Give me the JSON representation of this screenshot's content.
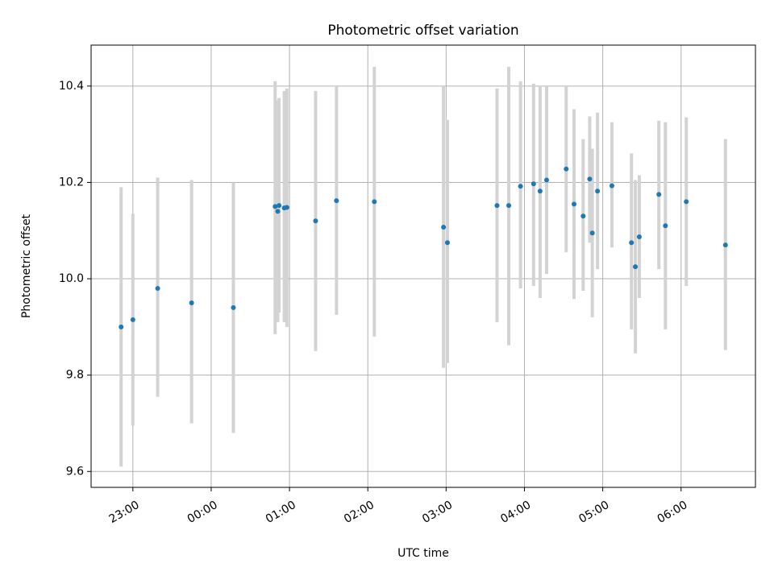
{
  "chart_data": {
    "type": "scatter",
    "title": "Photometric offset variation",
    "xlabel": "UTC time",
    "ylabel": "Photometric offset",
    "x_type": "time",
    "xlim": [
      "22:28",
      "06:57"
    ],
    "ylim": [
      9.567,
      10.485
    ],
    "x_ticks": [
      "23:00",
      "00:00",
      "01:00",
      "02:00",
      "03:00",
      "04:00",
      "05:00",
      "06:00"
    ],
    "y_ticks": [
      9.6,
      9.8,
      10.0,
      10.2,
      10.4
    ],
    "grid": true,
    "marker_color": "#1f77b4",
    "errorbar_color": "#d3d3d3",
    "points": [
      {
        "x": "22:51",
        "y": 9.9,
        "y_low": 9.61,
        "y_high": 10.19
      },
      {
        "x": "23:00",
        "y": 9.915,
        "y_low": 9.695,
        "y_high": 10.135
      },
      {
        "x": "23:19",
        "y": 9.98,
        "y_low": 9.755,
        "y_high": 10.21
      },
      {
        "x": "23:45",
        "y": 9.95,
        "y_low": 9.7,
        "y_high": 10.205
      },
      {
        "x": "00:17",
        "y": 9.94,
        "y_low": 9.68,
        "y_high": 10.2
      },
      {
        "x": "00:49",
        "y": 10.15,
        "y_low": 9.885,
        "y_high": 10.41
      },
      {
        "x": "00:51",
        "y": 10.14,
        "y_low": 9.91,
        "y_high": 10.37
      },
      {
        "x": "00:52",
        "y": 10.152,
        "y_low": 9.93,
        "y_high": 10.375
      },
      {
        "x": "00:56",
        "y": 10.147,
        "y_low": 9.91,
        "y_high": 10.39
      },
      {
        "x": "00:58",
        "y": 10.148,
        "y_low": 9.9,
        "y_high": 10.395
      },
      {
        "x": "01:20",
        "y": 10.12,
        "y_low": 9.85,
        "y_high": 10.39
      },
      {
        "x": "01:36",
        "y": 10.162,
        "y_low": 9.925,
        "y_high": 10.4
      },
      {
        "x": "02:05",
        "y": 10.16,
        "y_low": 9.88,
        "y_high": 10.44
      },
      {
        "x": "02:58",
        "y": 10.107,
        "y_low": 9.815,
        "y_high": 10.4
      },
      {
        "x": "03:01",
        "y": 10.075,
        "y_low": 9.825,
        "y_high": 10.33
      },
      {
        "x": "03:39",
        "y": 10.152,
        "y_low": 9.91,
        "y_high": 10.395
      },
      {
        "x": "03:48",
        "y": 10.152,
        "y_low": 9.862,
        "y_high": 10.44
      },
      {
        "x": "03:57",
        "y": 10.192,
        "y_low": 9.98,
        "y_high": 10.41
      },
      {
        "x": "04:07",
        "y": 10.197,
        "y_low": 9.985,
        "y_high": 10.405
      },
      {
        "x": "04:12",
        "y": 10.182,
        "y_low": 9.96,
        "y_high": 10.4
      },
      {
        "x": "04:17",
        "y": 10.205,
        "y_low": 10.01,
        "y_high": 10.4
      },
      {
        "x": "04:32",
        "y": 10.228,
        "y_low": 10.055,
        "y_high": 10.4
      },
      {
        "x": "04:38",
        "y": 10.155,
        "y_low": 9.958,
        "y_high": 10.352
      },
      {
        "x": "04:45",
        "y": 10.13,
        "y_low": 9.975,
        "y_high": 10.29
      },
      {
        "x": "04:50",
        "y": 10.207,
        "y_low": 10.075,
        "y_high": 10.337
      },
      {
        "x": "04:52",
        "y": 10.095,
        "y_low": 9.92,
        "y_high": 10.27
      },
      {
        "x": "04:56",
        "y": 10.182,
        "y_low": 10.02,
        "y_high": 10.345
      },
      {
        "x": "05:07",
        "y": 10.193,
        "y_low": 10.065,
        "y_high": 10.325
      },
      {
        "x": "05:22",
        "y": 10.075,
        "y_low": 9.895,
        "y_high": 10.26
      },
      {
        "x": "05:25",
        "y": 10.025,
        "y_low": 9.845,
        "y_high": 10.205
      },
      {
        "x": "05:28",
        "y": 10.087,
        "y_low": 9.96,
        "y_high": 10.215
      },
      {
        "x": "05:43",
        "y": 10.175,
        "y_low": 10.02,
        "y_high": 10.328
      },
      {
        "x": "05:48",
        "y": 10.11,
        "y_low": 9.895,
        "y_high": 10.325
      },
      {
        "x": "06:04",
        "y": 10.16,
        "y_low": 9.985,
        "y_high": 10.335
      },
      {
        "x": "06:34",
        "y": 10.07,
        "y_low": 9.852,
        "y_high": 10.29
      }
    ]
  }
}
